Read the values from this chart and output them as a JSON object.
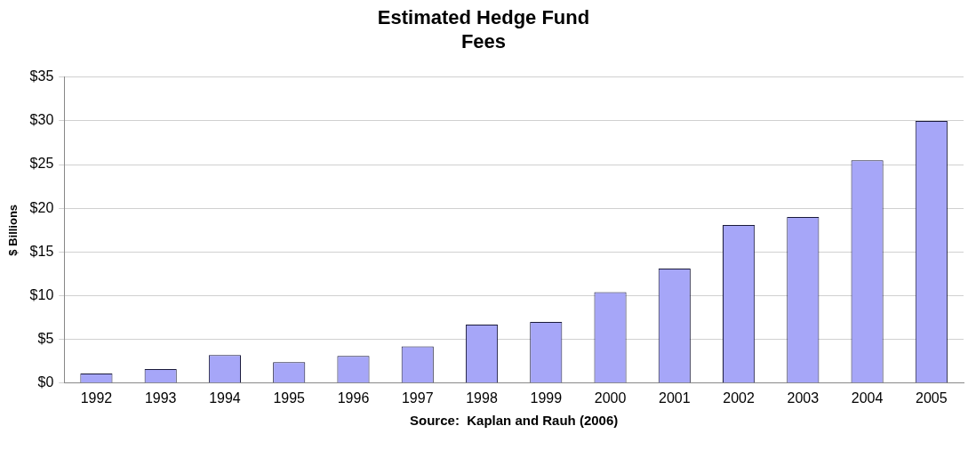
{
  "chart_data": {
    "type": "bar",
    "title": "Estimated Hedge Fund\nFees",
    "ylabel": "$ Billions",
    "annotations": [
      "Source:  Kaplan and Rauh (2006)"
    ],
    "categories": [
      "1992",
      "1993",
      "1994",
      "1995",
      "1996",
      "1997",
      "1998",
      "1999",
      "2000",
      "2001",
      "2002",
      "2003",
      "2004",
      "2005"
    ],
    "values": [
      1.1,
      1.6,
      3.2,
      2.4,
      3.1,
      4.2,
      6.7,
      7.0,
      10.4,
      13.1,
      18.1,
      19.0,
      25.5,
      30.0
    ],
    "color": "#a6a6f8",
    "ylim": [
      0,
      35
    ],
    "yticks": [
      {
        "value": 0,
        "label": "$0"
      },
      {
        "value": 5,
        "label": "$5"
      },
      {
        "value": 10,
        "label": "$10"
      },
      {
        "value": 15,
        "label": "$15"
      },
      {
        "value": 20,
        "label": "$20"
      },
      {
        "value": 25,
        "label": "$25"
      },
      {
        "value": 30,
        "label": "$30"
      },
      {
        "value": 35,
        "label": "$35"
      }
    ],
    "grid": "y",
    "legend": false
  }
}
